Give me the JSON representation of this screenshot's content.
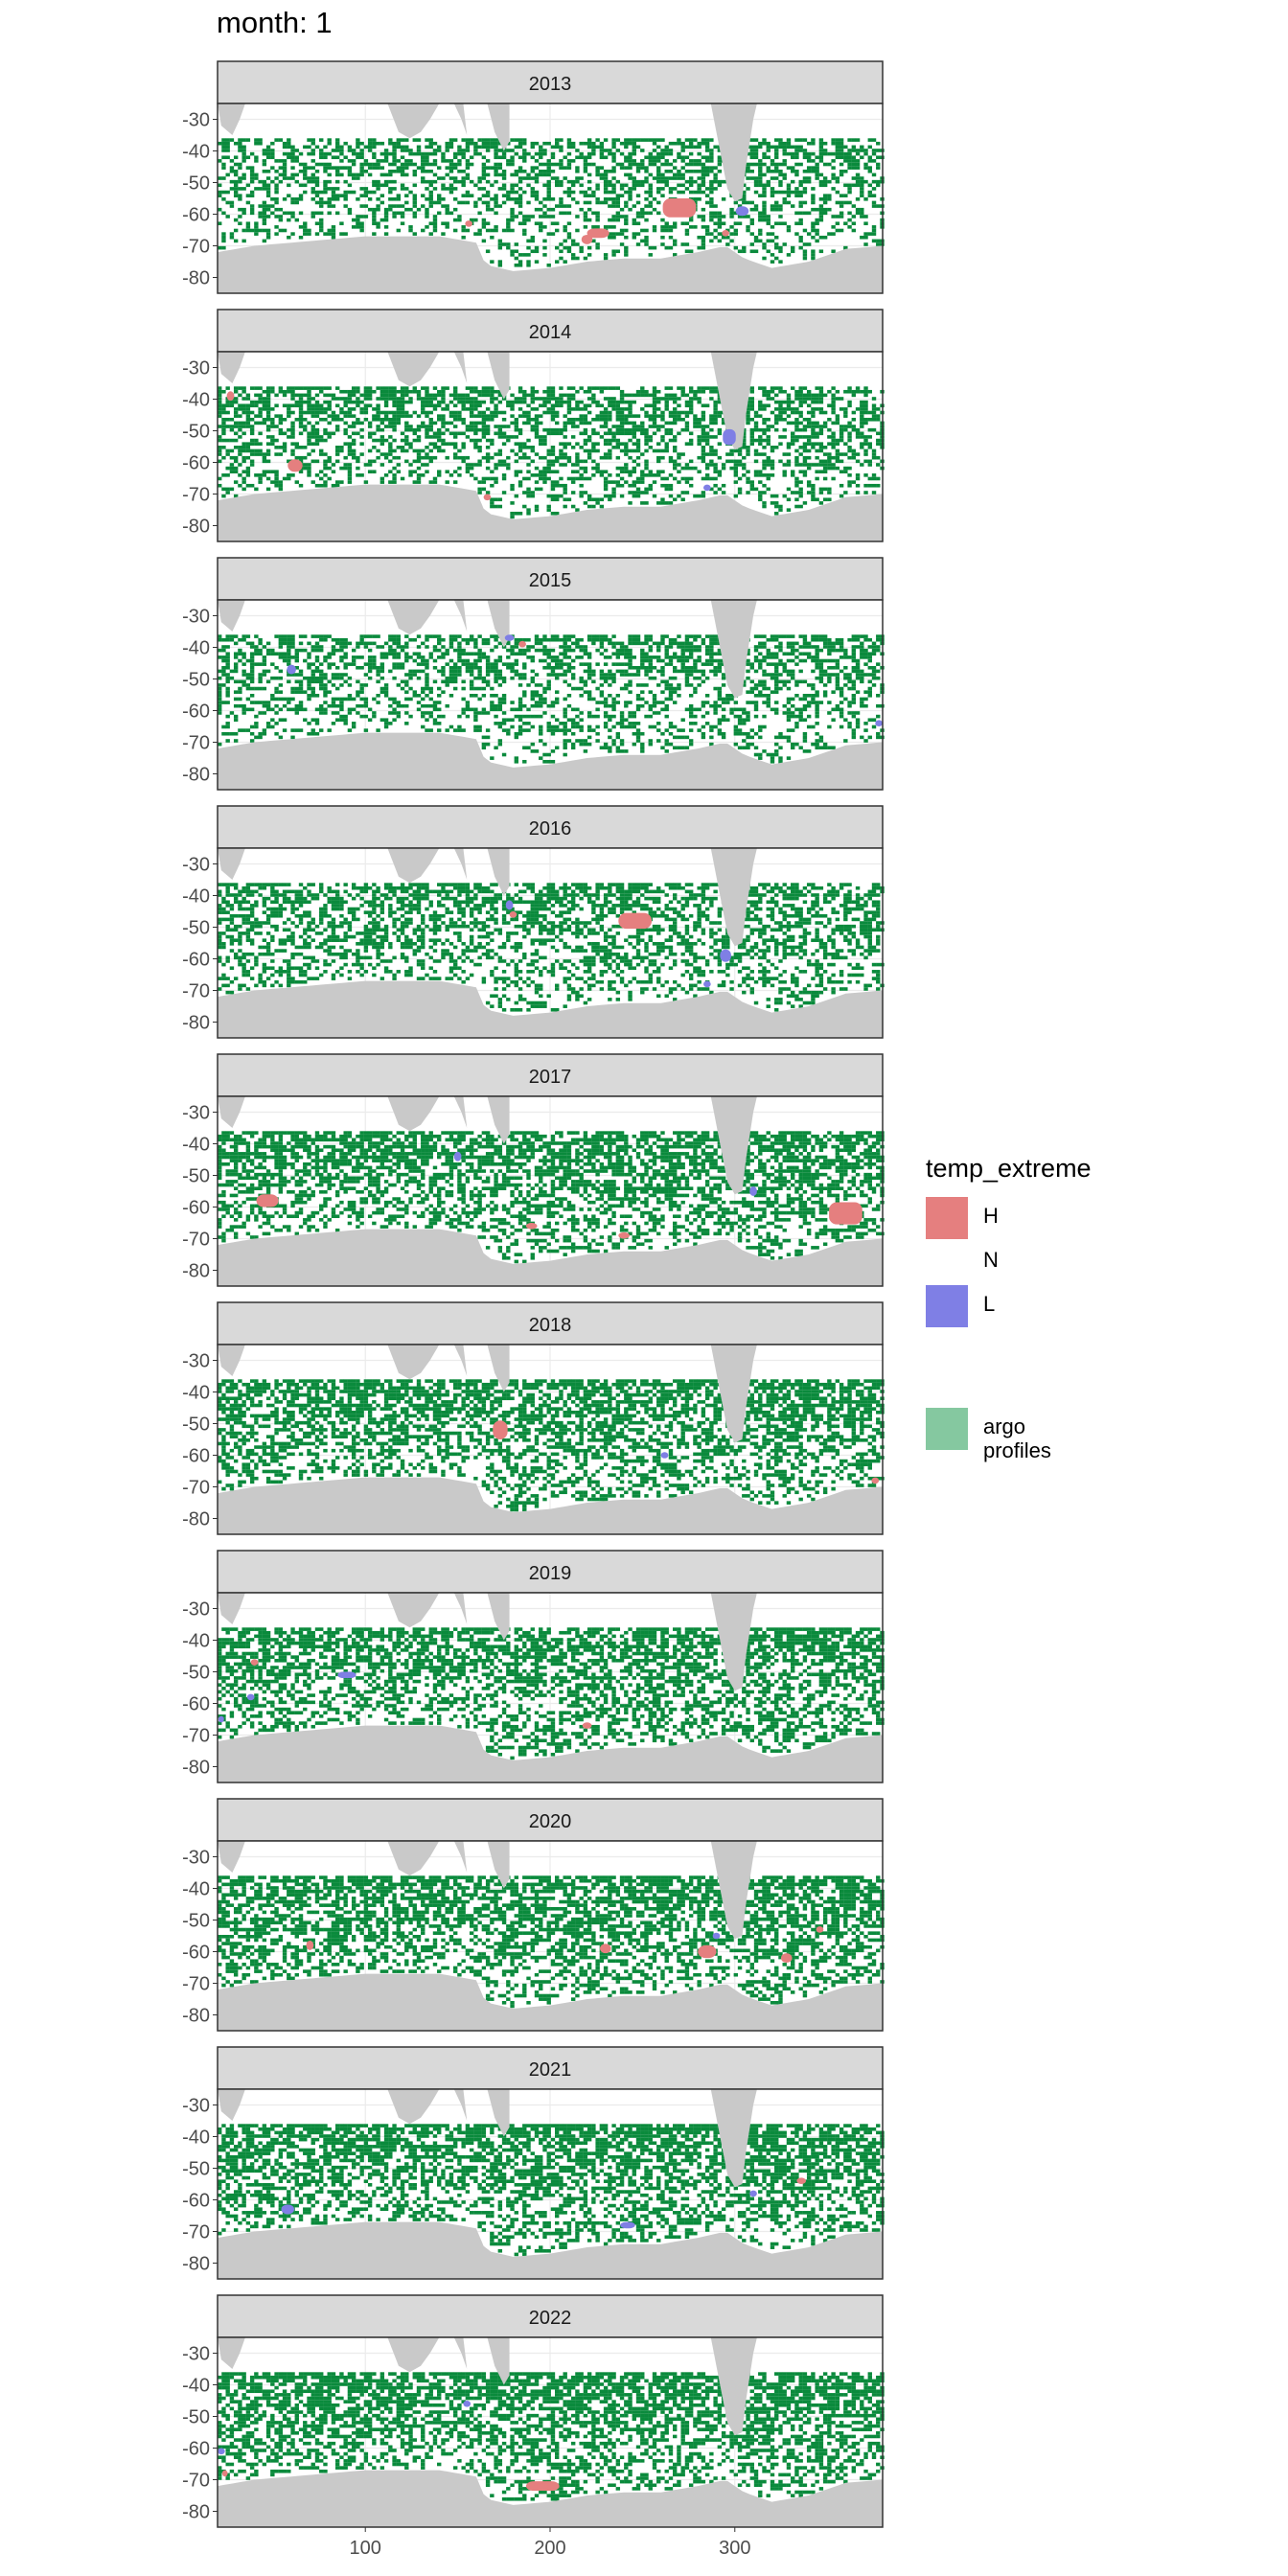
{
  "title": "month: 1",
  "colors": {
    "land": "#c9c9c9",
    "strip": "#d9d9d9",
    "panel_border": "#333333",
    "grid": "#ebebeb",
    "H": "#e57f7f",
    "L": "#7f7fe5",
    "argo": "#0a8a3c",
    "argo_legend": "#85c8a0"
  },
  "chart_data": {
    "type": "heatmap",
    "facet_labels": [
      "2013",
      "2014",
      "2015",
      "2016",
      "2017",
      "2018",
      "2019",
      "2020",
      "2021",
      "2022"
    ],
    "x_ticks": [
      100,
      200,
      300
    ],
    "xlim": [
      20,
      380
    ],
    "y_ticks": [
      -30,
      -40,
      -50,
      -60,
      -70,
      -80
    ],
    "ylim": [
      -85,
      -25
    ],
    "legend": {
      "title": "temp_extreme",
      "position": "right",
      "items": [
        {
          "label": "H",
          "color": "#e57f7f"
        },
        {
          "label": "N",
          "color": ""
        },
        {
          "label": "L",
          "color": "#7f7fe5"
        }
      ],
      "argo_label": [
        "argo",
        "profiles"
      ]
    },
    "patches": [
      {
        "year": "2013",
        "H": [
          [
            270,
            -58,
            18,
            6
          ],
          [
            226,
            -66,
            12,
            3
          ],
          [
            220,
            -68,
            6,
            3
          ],
          [
            295,
            -66,
            4,
            2
          ],
          [
            156,
            -63,
            4,
            2
          ]
        ],
        "L": [
          [
            304,
            -59,
            7,
            3
          ]
        ],
        "argo_density": 0.55
      },
      {
        "year": "2014",
        "H": [
          [
            62,
            -61,
            8,
            4
          ],
          [
            27,
            -39,
            4,
            3
          ],
          [
            166,
            -71,
            4,
            2
          ]
        ],
        "L": [
          [
            297,
            -52,
            7,
            5
          ],
          [
            285,
            -68,
            4,
            2
          ]
        ],
        "argo_density": 0.6
      },
      {
        "year": "2015",
        "H": [
          [
            185,
            -39,
            4,
            2
          ]
        ],
        "L": [
          [
            178,
            -37,
            5,
            2
          ],
          [
            60,
            -47,
            5,
            3
          ],
          [
            378,
            -64,
            4,
            2
          ]
        ],
        "argo_density": 0.55
      },
      {
        "year": "2016",
        "H": [
          [
            246,
            -48,
            18,
            5
          ],
          [
            180,
            -46,
            4,
            2
          ]
        ],
        "L": [
          [
            295,
            -59,
            6,
            4
          ],
          [
            178,
            -43,
            4,
            3
          ],
          [
            285,
            -68,
            4,
            2
          ]
        ],
        "argo_density": 0.6
      },
      {
        "year": "2017",
        "H": [
          [
            360,
            -62,
            18,
            7
          ],
          [
            47,
            -58,
            12,
            4
          ],
          [
            190,
            -66,
            6,
            2
          ],
          [
            240,
            -69,
            6,
            2
          ]
        ],
        "L": [
          [
            150,
            -44,
            4,
            3
          ],
          [
            310,
            -55,
            4,
            3
          ]
        ],
        "argo_density": 0.7
      },
      {
        "year": "2018",
        "H": [
          [
            173,
            -52,
            8,
            6
          ],
          [
            376,
            -68,
            4,
            2
          ]
        ],
        "L": [
          [
            262,
            -60,
            4,
            2
          ]
        ],
        "argo_density": 0.7
      },
      {
        "year": "2019",
        "H": [
          [
            220,
            -67,
            5,
            2
          ],
          [
            40,
            -47,
            4,
            2
          ]
        ],
        "L": [
          [
            90,
            -51,
            10,
            2
          ],
          [
            38,
            -58,
            4,
            2
          ],
          [
            22,
            -65,
            3,
            2
          ]
        ],
        "argo_density": 0.7
      },
      {
        "year": "2020",
        "H": [
          [
            285,
            -60,
            10,
            4
          ],
          [
            230,
            -59,
            6,
            3
          ],
          [
            328,
            -62,
            6,
            3
          ],
          [
            70,
            -58,
            4,
            3
          ],
          [
            346,
            -53,
            4,
            2
          ]
        ],
        "L": [
          [
            290,
            -55,
            4,
            2
          ]
        ],
        "argo_density": 0.72
      },
      {
        "year": "2021",
        "H": [
          [
            336,
            -54,
            5,
            2
          ]
        ],
        "L": [
          [
            58,
            -63,
            7,
            3
          ],
          [
            242,
            -68,
            8,
            2
          ],
          [
            310,
            -58,
            4,
            2
          ]
        ],
        "argo_density": 0.72
      },
      {
        "year": "2022",
        "H": [
          [
            196,
            -72,
            18,
            3
          ],
          [
            24,
            -68,
            3,
            2
          ]
        ],
        "L": [
          [
            22,
            -61,
            4,
            2
          ],
          [
            155,
            -46,
            4,
            2
          ]
        ],
        "argo_density": 0.72
      }
    ]
  }
}
